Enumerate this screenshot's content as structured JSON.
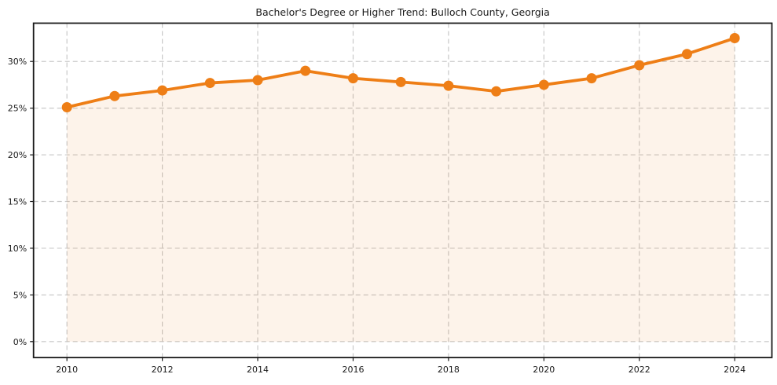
{
  "chart": {
    "title": "Bachelor's Degree or Higher Trend: Bulloch County, Georgia"
  },
  "chart_data": {
    "type": "area",
    "title": "Bachelor's Degree or Higher Trend: Bulloch County, Georgia",
    "series_name": "Bachelor's Degree or Higher",
    "x": [
      2010,
      2011,
      2012,
      2013,
      2014,
      2015,
      2016,
      2017,
      2018,
      2019,
      2020,
      2021,
      2022,
      2023,
      2024
    ],
    "values": [
      25.1,
      26.3,
      26.9,
      27.7,
      28.0,
      29.0,
      28.2,
      27.8,
      27.4,
      26.8,
      27.5,
      28.2,
      29.6,
      30.8,
      32.5
    ],
    "unit": "%",
    "xlabel": "",
    "ylabel": "",
    "xlim": [
      2009.3,
      2024.78
    ],
    "ylim": [
      -1.7,
      34.1
    ],
    "x_tick_values": [
      2010,
      2012,
      2014,
      2016,
      2018,
      2020,
      2022,
      2024
    ],
    "x_tick_labels": [
      "2010",
      "2012",
      "2014",
      "2016",
      "2018",
      "2020",
      "2022",
      "2024"
    ],
    "y_tick_values": [
      0,
      5,
      10,
      15,
      20,
      25,
      30
    ],
    "y_tick_labels": [
      "0%",
      "5%",
      "10%",
      "15%",
      "20%",
      "25%",
      "30%"
    ],
    "grid": true,
    "legend": "none",
    "line_color": "#ee7e16",
    "marker_color": "#ee7e16",
    "marker": "circle",
    "fill_color": "#ee7e16",
    "fill_opacity": 0.09,
    "grid_color": "#c9c9c9",
    "axis_color": "#1a1a1a",
    "text_color": "#1a1a1a",
    "background_color": "#ffffff"
  }
}
